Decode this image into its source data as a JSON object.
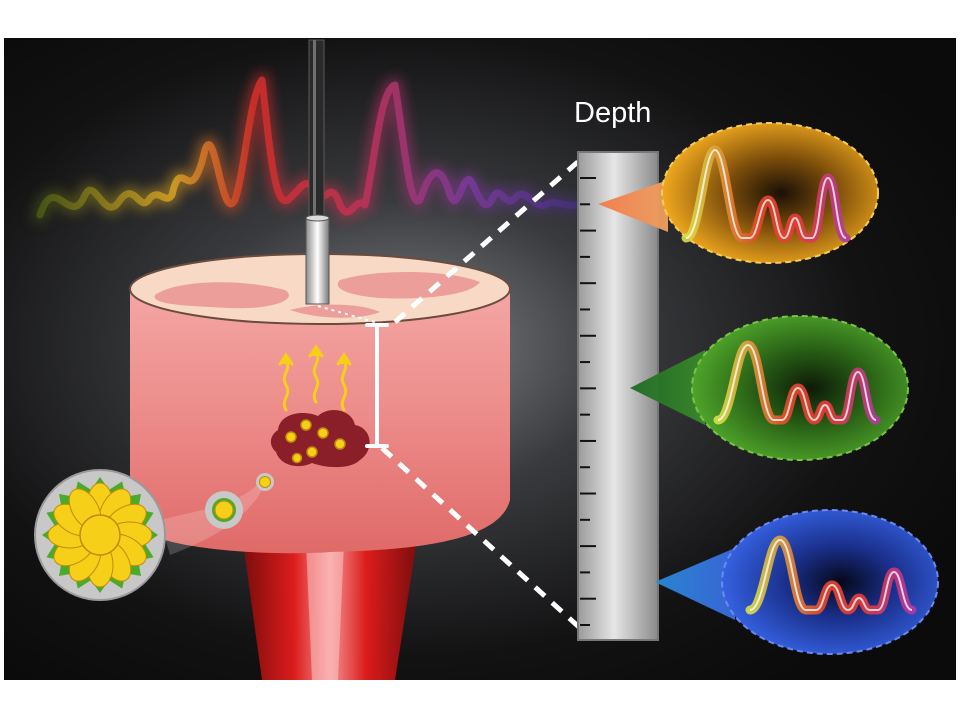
{
  "figure": {
    "depth_label": "Depth",
    "colors": {
      "panel_background": "#111111",
      "tissue": "#e9787a",
      "tissue_top": "#f5cfc0",
      "tumor": "#8a1f2a",
      "nanoparticle": "#f6cf18",
      "nanoparticle_shell": "#4caa2a",
      "laser": "#d61818",
      "depth_bar": "#cccccc",
      "shallow_spectrum_bg": "#e8a820",
      "middle_spectrum_bg": "#3f8a22",
      "deep_spectrum_bg": "#2950c8"
    },
    "icons": {
      "probe": "needle-probe-icon",
      "heat": "heat-wave-icon",
      "particle": "nanoparticle-icon",
      "laser": "laser-beam-icon"
    }
  }
}
